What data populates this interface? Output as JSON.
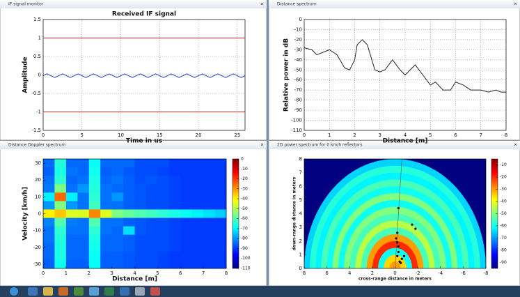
{
  "windows": [
    {
      "title": "IF signal monitor"
    },
    {
      "title": "Distance spectrum"
    },
    {
      "title": "Distance Doppler spectrum"
    },
    {
      "title": "2D power spectrum for 0 km/h reflectors"
    }
  ],
  "chart_data": [
    {
      "type": "line",
      "title": "Received IF signal",
      "xlabel": "Time in us",
      "ylabel": "Amplitude",
      "xlim": [
        0,
        26
      ],
      "ylim": [
        -1.5,
        1.5
      ],
      "xticks": [
        0,
        5,
        10,
        15,
        20,
        25
      ],
      "yticks": [
        -1.5,
        -1,
        -0.5,
        0,
        0.5,
        1,
        1.5
      ],
      "grid": true,
      "x": [
        0,
        0.5,
        1,
        1.5,
        2,
        2.5,
        3,
        3.5,
        4,
        4.5,
        5,
        5.5,
        6,
        6.5,
        7,
        7.5,
        8,
        8.5,
        9,
        9.5,
        10,
        10.5,
        11,
        11.5,
        12,
        12.5,
        13,
        13.5,
        14,
        14.5,
        15,
        15.5,
        16,
        16.5,
        17,
        17.5,
        18,
        18.5,
        19,
        19.5,
        20,
        20.5,
        21,
        21.5,
        22,
        22.5,
        23,
        23.5,
        24,
        24.5,
        25,
        25.5,
        26
      ],
      "series": [
        {
          "color": "#1f3fd0",
          "values": [
            -0.02,
            0.03,
            -0.02,
            -0.07,
            -0.02,
            0.03,
            -0.02,
            -0.07,
            -0.02,
            0.03,
            -0.02,
            -0.07,
            -0.02,
            0.03,
            -0.02,
            -0.07,
            -0.02,
            0.03,
            -0.02,
            -0.07,
            -0.02,
            0.03,
            -0.02,
            -0.07,
            -0.02,
            0.03,
            -0.02,
            -0.07,
            -0.02,
            0.03,
            -0.02,
            -0.07,
            -0.02,
            0.03,
            -0.02,
            -0.07,
            -0.02,
            0.03,
            -0.02,
            -0.07,
            -0.02,
            0.03,
            -0.02,
            -0.07,
            -0.02,
            0.03,
            -0.02,
            -0.07,
            -0.02,
            0.03,
            -0.02,
            -0.07,
            -0.02
          ]
        }
      ],
      "hlines": [
        1,
        -1
      ],
      "hline_color": "#e02020"
    },
    {
      "type": "line",
      "xlabel": "Distance [m]",
      "ylabel": "Relative power in dB",
      "xlim": [
        0,
        8
      ],
      "ylim": [
        -110,
        0
      ],
      "xticks": [
        0,
        1,
        2,
        3,
        4,
        5,
        6,
        7,
        8
      ],
      "yticks": [
        -110,
        -100,
        -90,
        -80,
        -70,
        -60,
        -50,
        -40,
        -30,
        -20,
        -10,
        0
      ],
      "grid": true,
      "x": [
        0,
        0.3,
        0.5,
        1,
        1.3,
        1.6,
        1.8,
        2,
        2.1,
        2.3,
        2.5,
        2.8,
        3,
        3.2,
        3.5,
        3.8,
        4,
        4.2,
        4.4,
        4.7,
        5,
        5.2,
        5.5,
        5.8,
        6,
        6.3,
        6.6,
        7,
        7.3,
        7.6,
        7.8,
        8
      ],
      "series": [
        {
          "color": "#222222",
          "values": [
            -28,
            -30,
            -35,
            -30,
            -35,
            -48,
            -50,
            -40,
            -25,
            -20,
            -25,
            -50,
            -52,
            -50,
            -40,
            -50,
            -55,
            -50,
            -45,
            -55,
            -65,
            -62,
            -70,
            -70,
            -62,
            -65,
            -70,
            -70,
            -72,
            -70,
            -72,
            -72
          ]
        }
      ]
    },
    {
      "type": "heatmap",
      "xlabel": "Distance [m]",
      "ylabel": "Velocity [km/h]",
      "xlim": [
        0,
        8
      ],
      "ylim": [
        -32.5,
        32.5
      ],
      "xticks": [
        0,
        1,
        2,
        3,
        4,
        5,
        6,
        7,
        8
      ],
      "yticks": [
        -30,
        -20,
        -10,
        0,
        10,
        20,
        30
      ],
      "colormap": "jet",
      "clim": [
        -110,
        0
      ],
      "cticks": [
        0,
        -10,
        -20,
        -30,
        -40,
        -50,
        -60,
        -70,
        -80,
        -90,
        -100,
        -110
      ],
      "x": [
        0.25,
        0.75,
        1.25,
        1.75,
        2.25,
        2.75,
        3.25,
        3.75,
        4.25,
        4.75,
        5.25,
        5.75,
        6.25,
        6.75,
        7.25,
        7.75
      ],
      "y": [
        30,
        25,
        20,
        15,
        10,
        5,
        0,
        -5,
        -10,
        -15,
        -20,
        -25,
        -30
      ],
      "z": [
        [
          -85,
          -65,
          -85,
          -85,
          -68,
          -85,
          -85,
          -85,
          -88,
          -88,
          -88,
          -90,
          -90,
          -90,
          -90,
          -90
        ],
        [
          -86,
          -66,
          -84,
          -85,
          -67,
          -86,
          -85,
          -87,
          -88,
          -88,
          -89,
          -90,
          -90,
          -90,
          -90,
          -90
        ],
        [
          -84,
          -64,
          -85,
          -84,
          -66,
          -85,
          -84,
          -86,
          -88,
          -87,
          -88,
          -89,
          -90,
          -90,
          -90,
          -90
        ],
        [
          -83,
          -55,
          -84,
          -80,
          -65,
          -84,
          -85,
          -86,
          -87,
          -88,
          -88,
          -89,
          -90,
          -90,
          -90,
          -90
        ],
        [
          -70,
          -25,
          -70,
          -84,
          -64,
          -84,
          -80,
          -86,
          -87,
          -88,
          -88,
          -89,
          -90,
          -90,
          -90,
          -90
        ],
        [
          -80,
          -55,
          -80,
          -84,
          -62,
          -84,
          -84,
          -86,
          -87,
          -88,
          -88,
          -89,
          -90,
          -90,
          -90,
          -90
        ],
        [
          -40,
          -35,
          -45,
          -45,
          -28,
          -45,
          -55,
          -58,
          -60,
          -62,
          -64,
          -66,
          -68,
          -70,
          -72,
          -74
        ],
        [
          -82,
          -60,
          -83,
          -84,
          -60,
          -84,
          -84,
          -86,
          -87,
          -88,
          -88,
          -89,
          -90,
          -90,
          -90,
          -90
        ],
        [
          -84,
          -64,
          -84,
          -84,
          -64,
          -84,
          -85,
          -72,
          -87,
          -88,
          -88,
          -89,
          -90,
          -90,
          -90,
          -90
        ],
        [
          -84,
          -65,
          -85,
          -85,
          -66,
          -85,
          -85,
          -86,
          -88,
          -88,
          -88,
          -89,
          -90,
          -90,
          -90,
          -90
        ],
        [
          -85,
          -66,
          -85,
          -85,
          -67,
          -85,
          -85,
          -86,
          -88,
          -88,
          -88,
          -89,
          -90,
          -90,
          -90,
          -90
        ],
        [
          -85,
          -66,
          -85,
          -85,
          -68,
          -86,
          -86,
          -87,
          -88,
          -88,
          -89,
          -90,
          -90,
          -90,
          -90,
          -90
        ],
        [
          -86,
          -67,
          -86,
          -86,
          -68,
          -86,
          -86,
          -87,
          -88,
          -88,
          -89,
          -90,
          -90,
          -90,
          -90,
          -90
        ]
      ]
    },
    {
      "type": "fan",
      "xlabel": "cross-range distance in meters",
      "ylabel": "down-range distance in meters",
      "xlim": [
        8,
        -8
      ],
      "ylim": [
        0,
        8
      ],
      "xticks": [
        8,
        6,
        4,
        2,
        0,
        -2,
        -4,
        -6,
        -8
      ],
      "yticks": [
        0,
        1,
        2,
        3,
        4,
        5,
        6,
        7,
        8
      ],
      "colormap": "jet",
      "clim": [
        -95,
        -5
      ],
      "cticks": [
        -10,
        -20,
        -30,
        -40,
        -50,
        -60,
        -70,
        -80,
        -90
      ],
      "r": [
        0.25,
        0.75,
        1.25,
        1.75,
        2.25,
        2.75,
        3.25,
        3.75,
        4.25,
        4.75,
        5.25,
        5.75,
        6.25,
        6.75,
        7.25,
        7.75
      ],
      "values": [
        -30,
        -35,
        -60,
        -20,
        -30,
        -55,
        -45,
        -55,
        -50,
        -60,
        -50,
        -60,
        -55,
        -62,
        -58,
        -65
      ],
      "points": {
        "color": "#000000",
        "x": [
          -0.3,
          -0.2,
          -0.1,
          -0.2,
          -0.3,
          -0.3,
          -0.2,
          -0.4,
          -0.6,
          -0.8,
          -1.5,
          -1.8,
          -0.5
        ],
        "y": [
          4.4,
          2.6,
          2.2,
          1.9,
          1.6,
          1.2,
          0.9,
          0.5,
          0.7,
          0.9,
          3.2,
          2.9,
          0.4
        ]
      }
    }
  ]
}
